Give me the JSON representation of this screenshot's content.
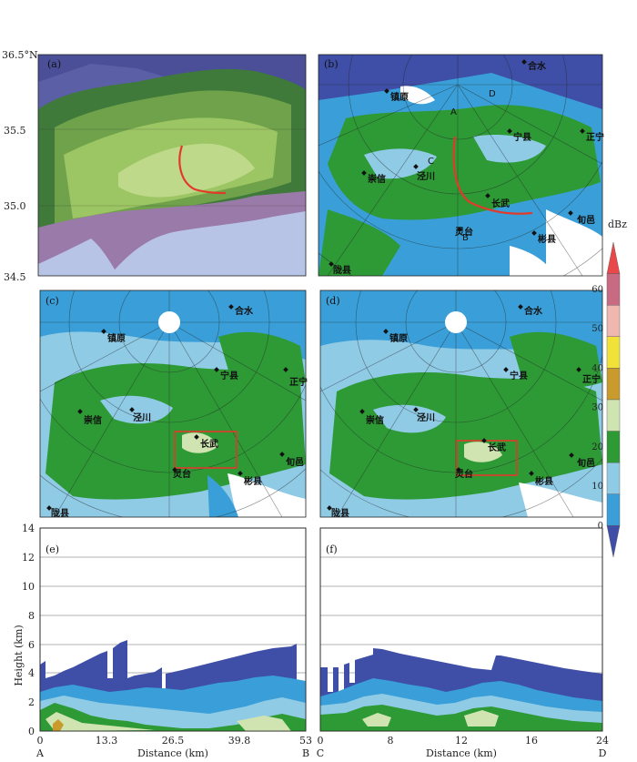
{
  "panels": {
    "a": "(a)",
    "b": "(b)",
    "c": "(c)",
    "d": "(d)",
    "e": "(e)",
    "f": "(f)"
  },
  "lat_ticks": [
    "36.5°N",
    "35.5",
    "35.0",
    "34.5"
  ],
  "cities": {
    "hs": "合水",
    "zy": "镇原",
    "nx": "宁县",
    "zn": "正宁",
    "cx": "崇信",
    "jc": "泾川",
    "cw": "长武",
    "xy": "旬邑",
    "lt": "灵台",
    "bx": "彬县",
    "lx": "陇县"
  },
  "point_labels": {
    "A": "A",
    "B": "B",
    "C": "C",
    "D": "D"
  },
  "colorbar": {
    "unit": "dBz",
    "ticks": [
      "60",
      "50",
      "40",
      "30",
      "20",
      "10",
      "0"
    ],
    "colors": [
      "#e8484a",
      "#c86a82",
      "#f0b6b0",
      "#f0e238",
      "#c99a2c",
      "#cfe4b0",
      "#2e9a36",
      "#90cbe6",
      "#3a9fd8",
      "#3f4ea6"
    ]
  },
  "section_e": {
    "ylabel": "Height (km)",
    "xlabel": "Distance (km)",
    "yticks": [
      "14",
      "12",
      "10",
      "8",
      "6",
      "4",
      "2",
      "0"
    ],
    "xticks": [
      "0",
      "13.3",
      "26.5",
      "39.8",
      "53"
    ],
    "start": "A",
    "end": "B"
  },
  "section_f": {
    "xlabel": "Distance (km)",
    "xticks": [
      "0",
      "8",
      "12",
      "16",
      "24"
    ],
    "start": "C",
    "end": "D"
  }
}
